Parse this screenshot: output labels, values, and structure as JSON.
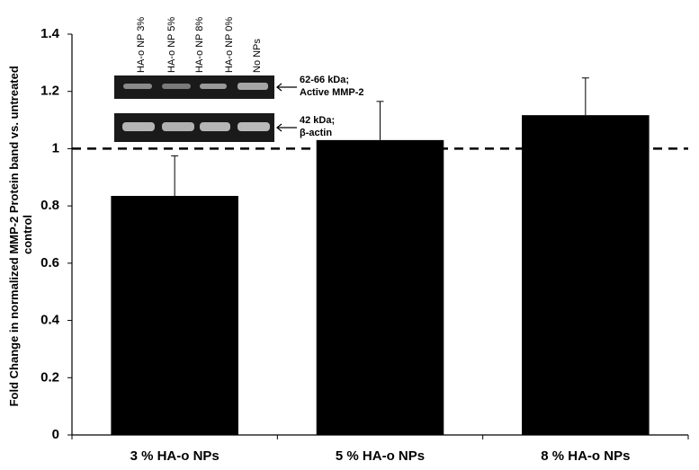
{
  "chart_data": {
    "type": "bar",
    "ylabel": [
      "Fold Change in normalized MMP-2 Protein band vs. untreated",
      "control"
    ],
    "categories": [
      "3 % HA-o NPs",
      "5 % HA-o NPs",
      "8 % HA-o NPs"
    ],
    "values": [
      0.835,
      1.03,
      1.117
    ],
    "error": [
      0.14,
      0.135,
      0.13
    ],
    "color": "#000000",
    "ylim": [
      0,
      1.4
    ],
    "yticks": [
      0,
      0.2,
      0.4,
      0.6,
      0.8,
      1,
      1.2,
      1.4
    ],
    "reference_line": 1,
    "inset": {
      "lanes": [
        "HA-o NP 3%",
        "HA-o NP 5%",
        "HA-o NP  8%",
        "HA-o NP 0%",
        "No NPs"
      ],
      "band_labels": [
        [
          "62-66 kDa;",
          "Active MMP-2"
        ],
        [
          "42 kDa;",
          "β-actin"
        ]
      ]
    }
  }
}
